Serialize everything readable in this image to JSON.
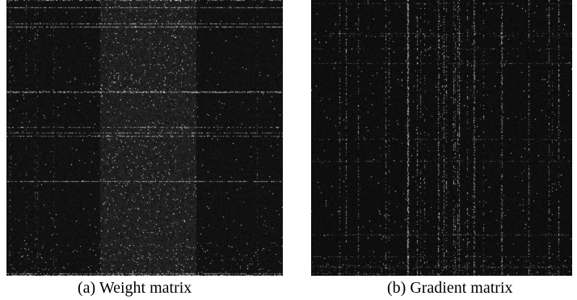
{
  "figures": [
    {
      "caption": "(a) Weight matrix",
      "texture": "dark noise matrix with a brighter vertical band and faint horizontal streaks"
    },
    {
      "caption": "(b) Gradient matrix",
      "texture": "dark noise matrix with sparse bright vertical and horizontal lines"
    }
  ],
  "colors": {
    "background": "#000000",
    "bright": "#ffffff",
    "caption_text": "#000000"
  }
}
